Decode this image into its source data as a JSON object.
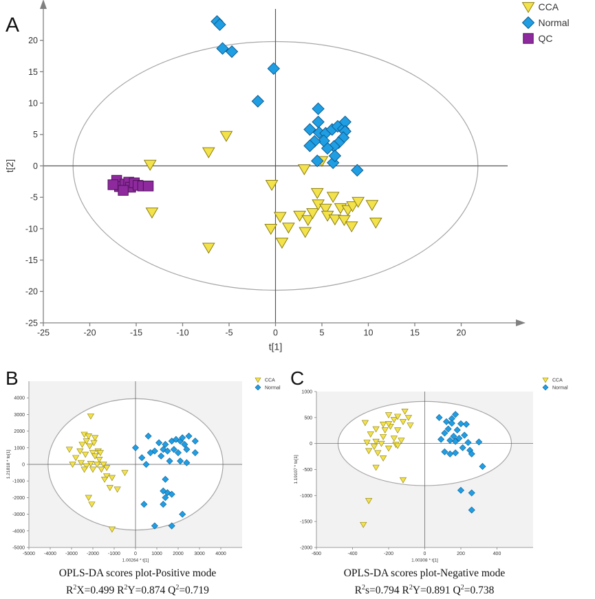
{
  "colors": {
    "cca_fill": "#f3e24a",
    "cca_stroke": "#8a7d12",
    "normal_fill": "#1f9ee4",
    "normal_stroke": "#0d5c8f",
    "qc_fill": "#8e2a9e",
    "qc_stroke": "#4e1258",
    "axis": "#808080",
    "plot_bg_small": "#f2f2f2",
    "ellipse": "#a6a6a6"
  },
  "chart_data": [
    {
      "panel": "A",
      "type": "scatter",
      "xlabel": "t[1]",
      "ylabel": "t[2]",
      "xlim": [
        -25,
        25
      ],
      "ylim": [
        -25,
        25
      ],
      "xticks": [
        -25,
        -20,
        -15,
        -10,
        -5,
        0,
        5,
        10,
        15,
        20
      ],
      "yticks": [
        -25,
        -20,
        -15,
        -10,
        -5,
        0,
        5,
        10,
        15,
        20
      ],
      "ellipse": {
        "cx": 0,
        "cy": 0,
        "rx": 21.8,
        "ry": 19.8
      },
      "legend": [
        "CCA",
        "Normal",
        "QC"
      ],
      "series": [
        {
          "name": "CCA",
          "marker": "triangle-down",
          "points": [
            [
              -13.5,
              0.2
            ],
            [
              -7.2,
              2.2
            ],
            [
              -5.3,
              4.8
            ],
            [
              -13.3,
              -7.4
            ],
            [
              -7.2,
              -13.0
            ],
            [
              -0.4,
              -3.0
            ],
            [
              -0.5,
              -10.0
            ],
            [
              0.7,
              -12.2
            ],
            [
              0.5,
              -8.1
            ],
            [
              1.4,
              -9.8
            ],
            [
              2.6,
              -7.9
            ],
            [
              3.2,
              -10.5
            ],
            [
              3.5,
              -8.6
            ],
            [
              3.1,
              -0.5
            ],
            [
              4.0,
              -7.5
            ],
            [
              4.5,
              -4.3
            ],
            [
              4.6,
              -6.1
            ],
            [
              5.4,
              -6.8
            ],
            [
              5.6,
              -7.9
            ],
            [
              6.2,
              -4.9
            ],
            [
              6.4,
              -8.5
            ],
            [
              7.0,
              -6.7
            ],
            [
              7.4,
              -8.6
            ],
            [
              7.8,
              -7.0
            ],
            [
              8.3,
              -6.4
            ],
            [
              8.2,
              -9.6
            ],
            [
              8.9,
              -5.7
            ],
            [
              10.4,
              -6.2
            ],
            [
              10.8,
              -9.0
            ],
            [
              5.0,
              0.8
            ]
          ]
        },
        {
          "name": "Normal",
          "marker": "diamond",
          "points": [
            [
              -6.3,
              23.0
            ],
            [
              -6.0,
              22.5
            ],
            [
              -5.7,
              18.7
            ],
            [
              -4.7,
              18.2
            ],
            [
              -0.2,
              15.5
            ],
            [
              -1.9,
              10.3
            ],
            [
              4.6,
              9.1
            ],
            [
              4.6,
              7.0
            ],
            [
              3.7,
              5.8
            ],
            [
              4.7,
              5.3
            ],
            [
              5.4,
              5.2
            ],
            [
              6.1,
              5.8
            ],
            [
              6.7,
              6.3
            ],
            [
              7.3,
              5.9
            ],
            [
              7.5,
              7.0
            ],
            [
              7.5,
              5.5
            ],
            [
              7.3,
              4.5
            ],
            [
              6.8,
              3.7
            ],
            [
              6.3,
              3.1
            ],
            [
              5.6,
              2.8
            ],
            [
              5.2,
              4.0
            ],
            [
              4.2,
              3.9
            ],
            [
              3.7,
              3.2
            ],
            [
              4.5,
              0.8
            ],
            [
              6.2,
              0.5
            ],
            [
              8.8,
              -0.7
            ],
            [
              6.4,
              1.6
            ]
          ]
        },
        {
          "name": "QC",
          "marker": "square",
          "points": [
            [
              -17.1,
              -2.3
            ],
            [
              -16.8,
              -3.3
            ],
            [
              -16.2,
              -2.9
            ],
            [
              -15.8,
              -2.6
            ],
            [
              -15.6,
              -3.4
            ],
            [
              -15.2,
              -2.7
            ],
            [
              -14.8,
              -3.1
            ],
            [
              -14.3,
              -3.2
            ],
            [
              -13.7,
              -3.2
            ],
            [
              -16.4,
              -3.9
            ],
            [
              -17.5,
              -3.0
            ]
          ]
        }
      ]
    },
    {
      "panel": "B",
      "type": "scatter",
      "xlabel": "1.00264 * t[1]",
      "ylabel": "1.21818 * to[1]",
      "xlim": [
        -5000,
        5000
      ],
      "ylim": [
        -5000,
        5000
      ],
      "xticks": [
        -5000,
        -4000,
        -3000,
        -2000,
        -1000,
        0,
        1000,
        2000,
        3000,
        4000
      ],
      "yticks": [
        -5000,
        -4000,
        -3000,
        -2000,
        -1000,
        0,
        1000,
        2000,
        3000,
        4000
      ],
      "ellipse": {
        "cx": 0,
        "cy": 0,
        "rx": 4100,
        "ry": 3950
      },
      "legend": [
        "CCA",
        "Normal"
      ],
      "caption": "OPLS-DA scores plot-Positive mode",
      "stats_parts": [
        "R",
        "2",
        "X=0.499 R",
        "2",
        "Y=0.874 Q",
        "2",
        "=0.719"
      ],
      "series": [
        {
          "name": "CCA",
          "marker": "triangle-down",
          "points": [
            [
              -2100,
              2900
            ],
            [
              -2400,
              1800
            ],
            [
              -2200,
              1700
            ],
            [
              -1900,
              1600
            ],
            [
              -2300,
              1400
            ],
            [
              -1950,
              1300
            ],
            [
              -2500,
              1200
            ],
            [
              -2150,
              1100
            ],
            [
              -3100,
              900
            ],
            [
              -2600,
              800
            ],
            [
              -1750,
              800
            ],
            [
              -2000,
              700
            ],
            [
              -1650,
              700
            ],
            [
              -2350,
              600
            ],
            [
              -1900,
              500
            ],
            [
              -2800,
              400
            ],
            [
              -1700,
              300
            ],
            [
              -2550,
              100
            ],
            [
              -2100,
              50
            ],
            [
              -1800,
              0
            ],
            [
              -2950,
              0
            ],
            [
              -1500,
              0
            ],
            [
              -2300,
              -100
            ],
            [
              -1350,
              -200
            ],
            [
              -1600,
              -300
            ],
            [
              -2000,
              -300
            ],
            [
              -1350,
              -700
            ],
            [
              -1100,
              -800
            ],
            [
              -1450,
              -900
            ],
            [
              -500,
              -500
            ],
            [
              -850,
              -1500
            ],
            [
              -1200,
              -1400
            ],
            [
              -2200,
              -2000
            ],
            [
              -2050,
              -2400
            ],
            [
              -1100,
              -3900
            ],
            [
              -2400,
              -300
            ]
          ]
        },
        {
          "name": "Normal",
          "marker": "diamond",
          "points": [
            [
              600,
              1700
            ],
            [
              1100,
              1300
            ],
            [
              1400,
              1200
            ],
            [
              1700,
              1400
            ],
            [
              1900,
              1500
            ],
            [
              2100,
              1400
            ],
            [
              2200,
              1600
            ],
            [
              2500,
              1700
            ],
            [
              2800,
              1400
            ],
            [
              2300,
              1200
            ],
            [
              1800,
              900
            ],
            [
              1300,
              900
            ],
            [
              1500,
              800
            ],
            [
              900,
              800
            ],
            [
              700,
              700
            ],
            [
              2000,
              700
            ],
            [
              2400,
              900
            ],
            [
              1200,
              500
            ],
            [
              2800,
              700
            ],
            [
              1600,
              200
            ],
            [
              2100,
              200
            ],
            [
              2400,
              100
            ],
            [
              0,
              1000
            ],
            [
              300,
              400
            ],
            [
              500,
              0
            ],
            [
              1400,
              -900
            ],
            [
              1500,
              -1700
            ],
            [
              1400,
              -2000
            ],
            [
              1700,
              -1800
            ],
            [
              1300,
              -2400
            ],
            [
              400,
              -2400
            ],
            [
              2200,
              -3000
            ],
            [
              900,
              -3700
            ],
            [
              1700,
              -3700
            ],
            [
              1300,
              -1600
            ]
          ]
        }
      ]
    },
    {
      "panel": "C",
      "type": "scatter",
      "xlabel": "1.00308 * t[1]",
      "ylabel": "1.19107 * to[1]",
      "xlim": [
        -600,
        600
      ],
      "ylim": [
        -2000,
        1000
      ],
      "xticks": [
        -600,
        -400,
        -200,
        0,
        200,
        400
      ],
      "yticks": [
        -2000,
        -1500,
        -1000,
        -500,
        0,
        500,
        1000
      ],
      "ellipse": {
        "cx": 0,
        "cy": 0,
        "rx": 480,
        "ry": 810
      },
      "legend": [
        "CCA",
        "Normal"
      ],
      "caption": "OPLS-DA scores plot-Negative mode",
      "stats_parts": [
        "R",
        "2",
        "s=0.794 R",
        "2",
        "Y=0.891 Q",
        "2",
        "=0.738"
      ],
      "series": [
        {
          "name": "CCA",
          "marker": "triangle-down",
          "points": [
            [
              -200,
              550
            ],
            [
              -110,
              620
            ],
            [
              -170,
              460
            ],
            [
              -150,
              520
            ],
            [
              -90,
              500
            ],
            [
              -120,
              420
            ],
            [
              -230,
              370
            ],
            [
              -190,
              330
            ],
            [
              -80,
              350
            ],
            [
              -270,
              280
            ],
            [
              -220,
              260
            ],
            [
              -150,
              260
            ],
            [
              -300,
              180
            ],
            [
              -230,
              130
            ],
            [
              -170,
              100
            ],
            [
              -130,
              60
            ],
            [
              -270,
              40
            ],
            [
              -320,
              20
            ],
            [
              -240,
              0
            ],
            [
              -160,
              -20
            ],
            [
              -280,
              -60
            ],
            [
              -200,
              -90
            ],
            [
              -310,
              -140
            ],
            [
              -260,
              -180
            ],
            [
              -230,
              -280
            ],
            [
              -270,
              -460
            ],
            [
              -150,
              -40
            ],
            [
              -120,
              -700
            ],
            [
              -310,
              -1100
            ],
            [
              -340,
              -1560
            ],
            [
              -200,
              380
            ],
            [
              -330,
              400
            ]
          ]
        },
        {
          "name": "Normal",
          "marker": "diamond",
          "points": [
            [
              80,
              500
            ],
            [
              120,
              420
            ],
            [
              150,
              480
            ],
            [
              170,
              560
            ],
            [
              150,
              390
            ],
            [
              200,
              380
            ],
            [
              230,
              370
            ],
            [
              130,
              280
            ],
            [
              180,
              260
            ],
            [
              110,
              200
            ],
            [
              160,
              140
            ],
            [
              220,
              160
            ],
            [
              190,
              100
            ],
            [
              90,
              80
            ],
            [
              140,
              60
            ],
            [
              170,
              40
            ],
            [
              240,
              20
            ],
            [
              210,
              -80
            ],
            [
              250,
              -130
            ],
            [
              300,
              30
            ],
            [
              260,
              -200
            ],
            [
              140,
              -200
            ],
            [
              110,
              -160
            ],
            [
              170,
              -180
            ],
            [
              320,
              -440
            ],
            [
              200,
              -900
            ],
            [
              260,
              -950
            ],
            [
              260,
              -1280
            ]
          ]
        }
      ]
    }
  ]
}
